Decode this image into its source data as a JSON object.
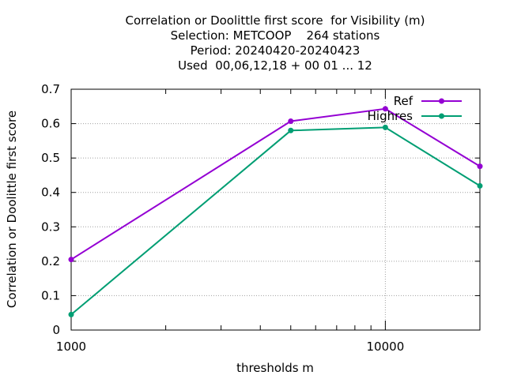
{
  "chart_data": {
    "type": "line",
    "title_lines": [
      "Correlation or Doolittle first score  for Visibility (m)",
      "Selection: METCOOP    264 stations",
      "Period: 20240420-20240423",
      "Used  00,06,12,18 + 00 01 ... 12"
    ],
    "xlabel": "thresholds m",
    "ylabel": "Correlation or Doolittle first score",
    "x_scale": "log",
    "xlim": [
      1000,
      20000
    ],
    "ylim": [
      0,
      0.7
    ],
    "x_ticks": [
      1000,
      10000
    ],
    "x_tick_labels": [
      "1000",
      "10000"
    ],
    "y_ticks": [
      0,
      0.1,
      0.2,
      0.3,
      0.4,
      0.5,
      0.6,
      0.7
    ],
    "y_tick_labels": [
      "0",
      "0.1",
      "0.2",
      "0.3",
      "0.4",
      "0.5",
      "0.6",
      "0.7"
    ],
    "grid": true,
    "legend_position": "top-right",
    "x": [
      1000,
      5000,
      10000,
      20000
    ],
    "series": [
      {
        "name": "Ref",
        "color": "#9400d3",
        "values": [
          0.205,
          0.607,
          0.643,
          0.476
        ]
      },
      {
        "name": "Highres",
        "color": "#009e73",
        "values": [
          0.045,
          0.58,
          0.589,
          0.419
        ]
      }
    ]
  }
}
